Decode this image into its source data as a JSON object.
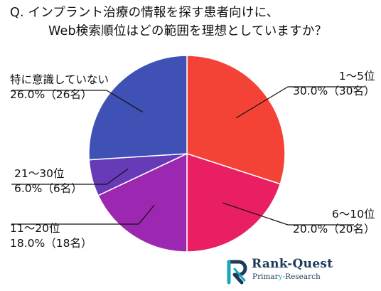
{
  "title": {
    "line1": "Q. インプラント治療の情報を探す患者向けに、",
    "line2": "Web検索順位はどの範囲を理想としていますか？"
  },
  "chart_data": {
    "type": "pie",
    "title": "Q. インプラント治療の情報を探す患者向けに、Web検索順位はどの範囲を理想としていますか？",
    "start_angle_deg": 0,
    "direction": "clockwise",
    "slices": [
      {
        "label": "1〜5位",
        "value": 30.0,
        "count": 30,
        "value_text": "30.0%（30名）",
        "color": "#f44336"
      },
      {
        "label": "6〜10位",
        "value": 20.0,
        "count": 20,
        "value_text": "20.0%（20名）",
        "color": "#e91e63"
      },
      {
        "label": "11〜20位",
        "value": 18.0,
        "count": 18,
        "value_text": "18.0%（18名）",
        "color": "#9c27b0"
      },
      {
        "label": "21〜30位",
        "value": 6.0,
        "count": 6,
        "value_text": "6.0%（6名）",
        "color": "#673ab7"
      },
      {
        "label": "特に意識していない",
        "value": 26.0,
        "count": 26,
        "value_text": "26.0%（26名）",
        "color": "#3f51b5"
      }
    ],
    "legend": "none"
  },
  "logo": {
    "name_part1": "Rank-",
    "name_part2": "Quest",
    "sub_part1": "Primar",
    "sub_part2": "y",
    "sub_part3": "-Research",
    "accent_color": "#1aa7b8",
    "brand_color": "#1d3a5c"
  }
}
